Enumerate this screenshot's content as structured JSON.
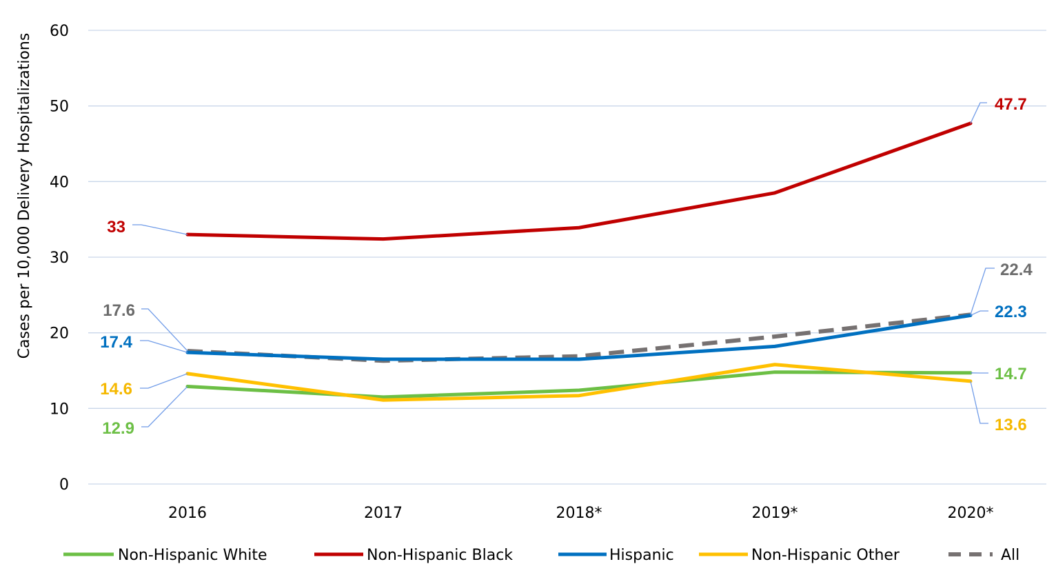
{
  "chart_data": {
    "type": "line",
    "title": "",
    "xlabel": "",
    "ylabel": "Cases per 10,000 Delivery Hospitalizations",
    "ylim": [
      0,
      60
    ],
    "yticks": [
      "0",
      "10",
      "20",
      "30",
      "40",
      "50",
      "60"
    ],
    "categories": [
      "2016",
      "2017",
      "2018*",
      "2019*",
      "2020*"
    ],
    "grid": true,
    "legend_position": "bottom",
    "series": [
      {
        "name": "Non-Hispanic White",
        "color": "#6cbf45",
        "dashed": false,
        "values": [
          12.9,
          11.5,
          12.4,
          14.8,
          14.7
        ]
      },
      {
        "name": "Non-Hispanic Black",
        "color": "#c00000",
        "dashed": false,
        "values": [
          33,
          32.4,
          33.9,
          38.5,
          47.7
        ]
      },
      {
        "name": "Hispanic",
        "color": "#0070c0",
        "dashed": false,
        "values": [
          17.4,
          16.5,
          16.5,
          18.2,
          22.3
        ]
      },
      {
        "name": "Non-Hispanic Other",
        "color": "#ffc000",
        "dashed": false,
        "values": [
          14.6,
          11.1,
          11.7,
          15.8,
          13.6
        ]
      },
      {
        "name": "All",
        "color": "#767171",
        "dashed": true,
        "values": [
          17.6,
          16.3,
          16.9,
          19.5,
          22.4
        ]
      }
    ],
    "data_labels": [
      {
        "series": 1,
        "point": 0,
        "text": "33"
      },
      {
        "series": 4,
        "point": 0,
        "text": "17.6"
      },
      {
        "series": 2,
        "point": 0,
        "text": "17.4"
      },
      {
        "series": 3,
        "point": 0,
        "text": "14.6"
      },
      {
        "series": 0,
        "point": 0,
        "text": "12.9"
      },
      {
        "series": 1,
        "point": 4,
        "text": "47.7"
      },
      {
        "series": 4,
        "point": 4,
        "text": "22.4"
      },
      {
        "series": 2,
        "point": 4,
        "text": "22.3"
      },
      {
        "series": 0,
        "point": 4,
        "text": "14.7"
      },
      {
        "series": 3,
        "point": 4,
        "text": "13.6"
      }
    ]
  }
}
